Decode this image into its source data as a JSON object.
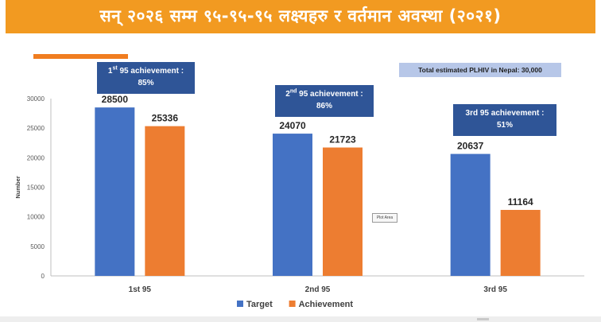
{
  "header": {
    "title": "सन् २०२६ सम्म ९५-९५-९५  लक्ष्यहरु र वर्तमान अवस्था (२०२१)"
  },
  "note": "Total estimated PLHIV in Nepal: 30,000",
  "callouts": [
    {
      "num": "1",
      "sup": "st",
      "rest": " 95 achievement :",
      "value": "85%"
    },
    {
      "num": "2",
      "sup": "nd",
      "rest": " 95 achievement :",
      "value": "86%"
    },
    {
      "num": "3rd 95 achievement :",
      "sup": "",
      "rest": "",
      "value": "51%"
    }
  ],
  "plot_area_label": "Plot Area",
  "colors": {
    "target": "#4472c4",
    "achievement": "#ed7d31",
    "header": "#f29a21",
    "callout": "#2f5597"
  },
  "chart_data": {
    "type": "bar",
    "categories": [
      "1st 95",
      "2nd 95",
      "3rd 95"
    ],
    "series": [
      {
        "name": "Target",
        "values": [
          28500,
          24070,
          20637
        ]
      },
      {
        "name": "Achievement",
        "values": [
          25336,
          21723,
          11164
        ]
      }
    ],
    "ylabel": "Number",
    "xlabel": "",
    "ylim": [
      0,
      30000
    ],
    "yticks": [
      0,
      5000,
      10000,
      15000,
      20000,
      25000,
      30000
    ],
    "legend": "bottom-center",
    "grid": false
  }
}
